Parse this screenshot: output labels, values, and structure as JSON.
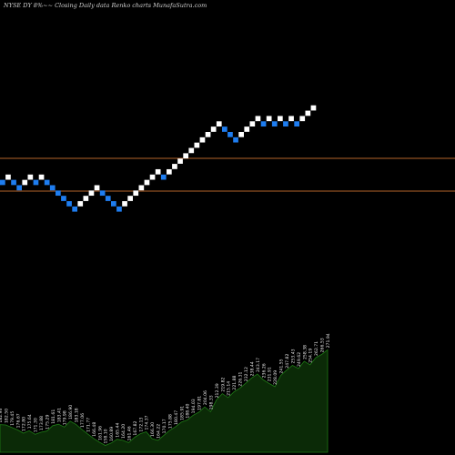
{
  "caption": "NYSE DY 8%~~ Closing Daily data  Renko  charts MunafaSutra.com",
  "chart_data": {
    "type": "renko",
    "title": "NYSE DY 8%~~ Closing Daily data  Renko  charts MunafaSutra.com",
    "colors": {
      "up": "#ffffff",
      "down": "#1e7df0",
      "level_lines": "#b5632a",
      "volume_fill": "#0b2a07",
      "volume_edge": "#1f7a16"
    },
    "level_lines": [
      "upper",
      "lower"
    ],
    "bricks": [
      {
        "dir": "down"
      },
      {
        "dir": "up"
      },
      {
        "dir": "down"
      },
      {
        "dir": "down"
      },
      {
        "dir": "up"
      },
      {
        "dir": "up"
      },
      {
        "dir": "down"
      },
      {
        "dir": "up"
      },
      {
        "dir": "down"
      },
      {
        "dir": "down"
      },
      {
        "dir": "down"
      },
      {
        "dir": "down"
      },
      {
        "dir": "down"
      },
      {
        "dir": "down"
      },
      {
        "dir": "up"
      },
      {
        "dir": "up"
      },
      {
        "dir": "up"
      },
      {
        "dir": "up"
      },
      {
        "dir": "down"
      },
      {
        "dir": "down"
      },
      {
        "dir": "down"
      },
      {
        "dir": "down"
      },
      {
        "dir": "up"
      },
      {
        "dir": "up"
      },
      {
        "dir": "up"
      },
      {
        "dir": "up"
      },
      {
        "dir": "up"
      },
      {
        "dir": "up"
      },
      {
        "dir": "up"
      },
      {
        "dir": "down"
      },
      {
        "dir": "up"
      },
      {
        "dir": "up"
      },
      {
        "dir": "up"
      },
      {
        "dir": "up"
      },
      {
        "dir": "up"
      },
      {
        "dir": "up"
      },
      {
        "dir": "up"
      },
      {
        "dir": "up"
      },
      {
        "dir": "up"
      },
      {
        "dir": "up"
      },
      {
        "dir": "down"
      },
      {
        "dir": "down"
      },
      {
        "dir": "down"
      },
      {
        "dir": "up"
      },
      {
        "dir": "up"
      },
      {
        "dir": "up"
      },
      {
        "dir": "up"
      },
      {
        "dir": "down"
      },
      {
        "dir": "up"
      },
      {
        "dir": "down"
      },
      {
        "dir": "up"
      },
      {
        "dir": "down"
      },
      {
        "dir": "up"
      },
      {
        "dir": "down"
      },
      {
        "dir": "up"
      },
      {
        "dir": "up"
      },
      {
        "dir": "up"
      }
    ],
    "volume_labels": [
      "182.93",
      "182.50",
      "179.45",
      "176.67",
      "172.80",
      "175.64",
      "171.30",
      "173.88",
      "175.29",
      "181.61",
      "183.41",
      "179.98",
      "186.90",
      "183.18",
      "177.06",
      "171.77",
      "166.48",
      "161.96",
      "158.10",
      "160.89",
      "165.44",
      "164.20",
      "161.46",
      "167.82",
      "172.13",
      "174.37",
      "166.30",
      "164.22",
      "170.17",
      "175.88",
      "180.47",
      "185.91",
      "188.40",
      "194.03",
      "197.81",
      "204.06",
      "198.33",
      "212.39",
      "219.82",
      "215.14",
      "221.88",
      "226.31",
      "232.12",
      "238.44",
      "243.17",
      "236.26",
      "231.91",
      "228.09",
      "241.55",
      "247.82",
      "253.43",
      "249.62",
      "258.38",
      "254.19",
      "262.71",
      "266.53",
      "271.94"
    ]
  }
}
